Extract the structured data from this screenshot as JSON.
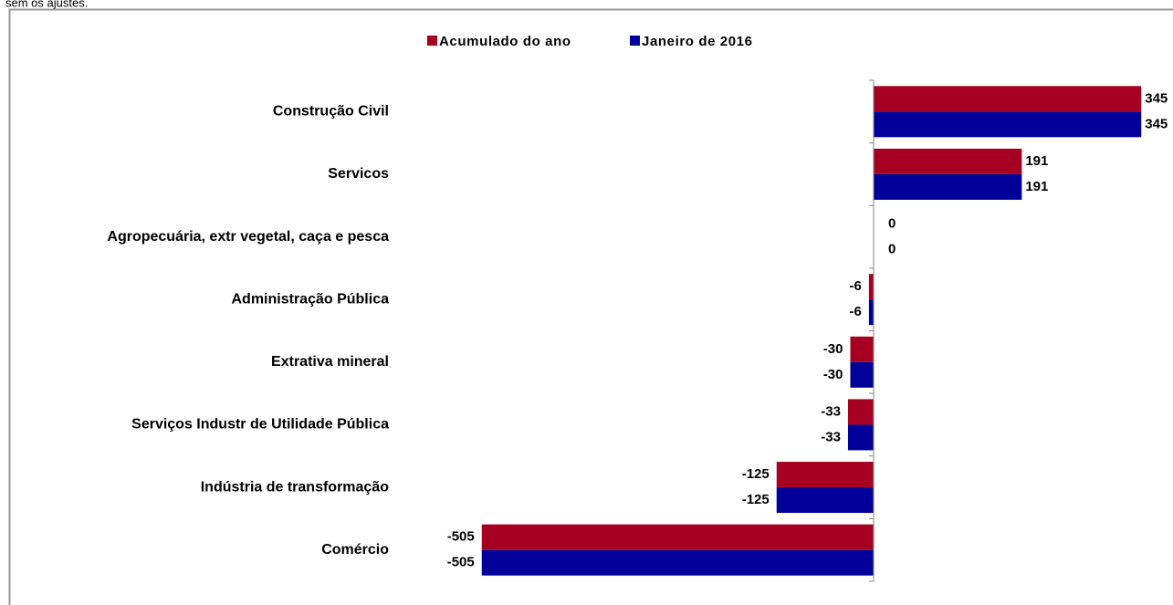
{
  "caption": "sem os ajustes.",
  "chart_data": {
    "type": "barh",
    "categories": [
      "Construção Civil",
      "Servicos",
      "Agropecuária, extr vegetal, caça e pesca",
      "Administração Pública",
      "Extrativa mineral",
      "Serviços Industr de Utilidade Pública",
      "Indústria de transformação",
      "Comércio"
    ],
    "series": [
      {
        "name": "Acumulado do ano",
        "color": "#a50021",
        "values": [
          345,
          191,
          0,
          -6,
          -30,
          -33,
          -125,
          -505
        ]
      },
      {
        "name": "Janeiro de 2016",
        "color": "#000099",
        "values": [
          345,
          191,
          0,
          -6,
          -30,
          -33,
          -125,
          -505
        ]
      }
    ],
    "xlim": [
      -560,
      380
    ],
    "legend": "top"
  }
}
